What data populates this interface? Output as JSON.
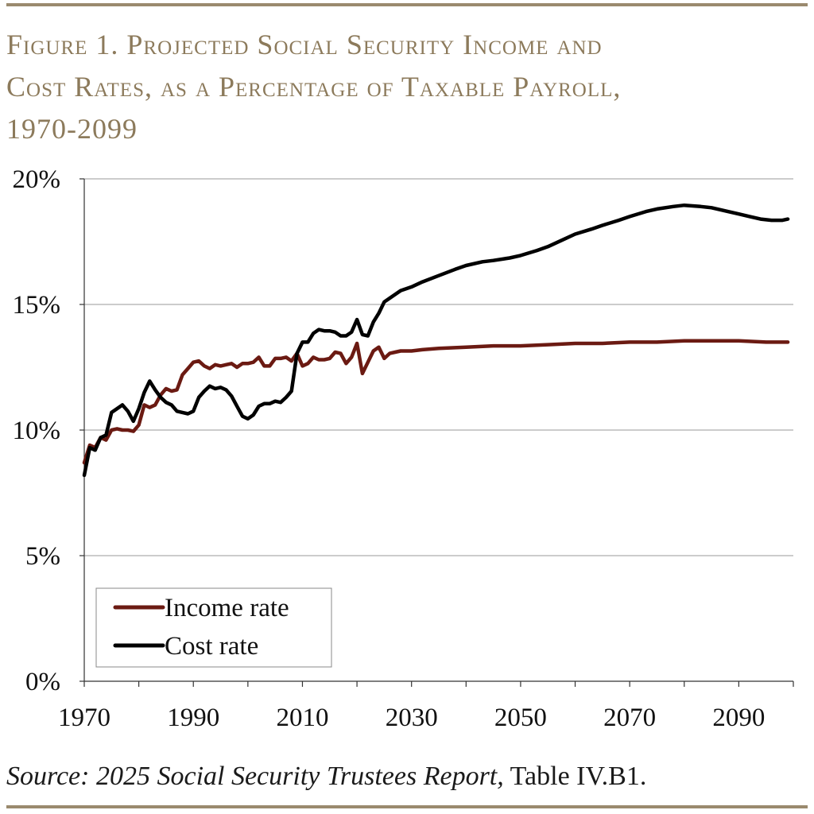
{
  "title_lines": [
    "Figure 1. Projected Social Security Income and",
    "Cost Rates, as a Percentage of Taxable Payroll,",
    "1970-2099"
  ],
  "source": {
    "italic": "Source: 2025 Social Security Trustees Report,",
    "plain": " Table IV.B1."
  },
  "colors": {
    "income": "#6b1a12",
    "cost": "#000000",
    "grid": "#9a9a9a",
    "axis": "#333333"
  },
  "chart_data": {
    "type": "line",
    "title": "Figure 1. Projected Social Security Income and Cost Rates, as a Percentage of Taxable Payroll, 1970-2099",
    "xlabel": "",
    "ylabel": "",
    "xlim": [
      1970,
      2100
    ],
    "ylim": [
      0,
      20
    ],
    "x_ticks": [
      1970,
      1990,
      2010,
      2030,
      2050,
      2070,
      2090
    ],
    "x_tick_labels": [
      "1970",
      "1990",
      "2010",
      "2030",
      "2050",
      "2070",
      "2090"
    ],
    "y_ticks": [
      0,
      5,
      10,
      15,
      20
    ],
    "y_tick_labels": [
      "0%",
      "5%",
      "10%",
      "15%",
      "20%"
    ],
    "grid": "horizontal",
    "legend_position": "bottom-left",
    "series": [
      {
        "name": "Income rate",
        "points": [
          [
            1970,
            8.7
          ],
          [
            1971,
            9.4
          ],
          [
            1972,
            9.3
          ],
          [
            1973,
            9.7
          ],
          [
            1974,
            9.6
          ],
          [
            1975,
            10.0
          ],
          [
            1976,
            10.05
          ],
          [
            1977,
            10.0
          ],
          [
            1978,
            10.0
          ],
          [
            1979,
            9.95
          ],
          [
            1980,
            10.2
          ],
          [
            1981,
            11.0
          ],
          [
            1982,
            10.9
          ],
          [
            1983,
            11.0
          ],
          [
            1984,
            11.4
          ],
          [
            1985,
            11.65
          ],
          [
            1986,
            11.55
          ],
          [
            1987,
            11.6
          ],
          [
            1988,
            12.2
          ],
          [
            1989,
            12.45
          ],
          [
            1990,
            12.7
          ],
          [
            1991,
            12.75
          ],
          [
            1992,
            12.55
          ],
          [
            1993,
            12.45
          ],
          [
            1994,
            12.6
          ],
          [
            1995,
            12.55
          ],
          [
            1996,
            12.6
          ],
          [
            1997,
            12.65
          ],
          [
            1998,
            12.5
          ],
          [
            1999,
            12.65
          ],
          [
            2000,
            12.65
          ],
          [
            2001,
            12.7
          ],
          [
            2002,
            12.9
          ],
          [
            2003,
            12.55
          ],
          [
            2004,
            12.55
          ],
          [
            2005,
            12.85
          ],
          [
            2006,
            12.85
          ],
          [
            2007,
            12.9
          ],
          [
            2008,
            12.75
          ],
          [
            2009,
            13.05
          ],
          [
            2010,
            12.55
          ],
          [
            2011,
            12.65
          ],
          [
            2012,
            12.9
          ],
          [
            2013,
            12.8
          ],
          [
            2014,
            12.8
          ],
          [
            2015,
            12.85
          ],
          [
            2016,
            13.1
          ],
          [
            2017,
            13.05
          ],
          [
            2018,
            12.65
          ],
          [
            2019,
            12.9
          ],
          [
            2020,
            13.45
          ],
          [
            2021,
            12.25
          ],
          [
            2022,
            12.7
          ],
          [
            2023,
            13.15
          ],
          [
            2024,
            13.3
          ],
          [
            2025,
            12.85
          ],
          [
            2026,
            13.05
          ],
          [
            2027,
            13.1
          ],
          [
            2028,
            13.15
          ],
          [
            2030,
            13.15
          ],
          [
            2032,
            13.2
          ],
          [
            2035,
            13.25
          ],
          [
            2040,
            13.3
          ],
          [
            2045,
            13.35
          ],
          [
            2050,
            13.35
          ],
          [
            2055,
            13.4
          ],
          [
            2060,
            13.45
          ],
          [
            2065,
            13.45
          ],
          [
            2070,
            13.5
          ],
          [
            2075,
            13.5
          ],
          [
            2080,
            13.55
          ],
          [
            2085,
            13.55
          ],
          [
            2090,
            13.55
          ],
          [
            2095,
            13.5
          ],
          [
            2099,
            13.5
          ]
        ]
      },
      {
        "name": "Cost rate",
        "points": [
          [
            1970,
            8.2
          ],
          [
            1971,
            9.3
          ],
          [
            1972,
            9.2
          ],
          [
            1973,
            9.7
          ],
          [
            1974,
            9.8
          ],
          [
            1975,
            10.7
          ],
          [
            1976,
            10.85
          ],
          [
            1977,
            11.0
          ],
          [
            1978,
            10.75
          ],
          [
            1979,
            10.35
          ],
          [
            1980,
            10.85
          ],
          [
            1981,
            11.5
          ],
          [
            1982,
            11.95
          ],
          [
            1983,
            11.6
          ],
          [
            1984,
            11.3
          ],
          [
            1985,
            11.1
          ],
          [
            1986,
            11.0
          ],
          [
            1987,
            10.75
          ],
          [
            1988,
            10.7
          ],
          [
            1989,
            10.65
          ],
          [
            1990,
            10.75
          ],
          [
            1991,
            11.3
          ],
          [
            1992,
            11.55
          ],
          [
            1993,
            11.75
          ],
          [
            1994,
            11.65
          ],
          [
            1995,
            11.7
          ],
          [
            1996,
            11.6
          ],
          [
            1997,
            11.35
          ],
          [
            1998,
            10.95
          ],
          [
            1999,
            10.55
          ],
          [
            2000,
            10.45
          ],
          [
            2001,
            10.6
          ],
          [
            2002,
            10.95
          ],
          [
            2003,
            11.05
          ],
          [
            2004,
            11.05
          ],
          [
            2005,
            11.15
          ],
          [
            2006,
            11.1
          ],
          [
            2007,
            11.3
          ],
          [
            2008,
            11.55
          ],
          [
            2009,
            13.05
          ],
          [
            2010,
            13.5
          ],
          [
            2011,
            13.5
          ],
          [
            2012,
            13.85
          ],
          [
            2013,
            14.0
          ],
          [
            2014,
            13.95
          ],
          [
            2015,
            13.95
          ],
          [
            2016,
            13.9
          ],
          [
            2017,
            13.75
          ],
          [
            2018,
            13.75
          ],
          [
            2019,
            13.9
          ],
          [
            2020,
            14.4
          ],
          [
            2021,
            13.8
          ],
          [
            2022,
            13.75
          ],
          [
            2023,
            14.3
          ],
          [
            2024,
            14.65
          ],
          [
            2025,
            15.1
          ],
          [
            2026,
            15.25
          ],
          [
            2027,
            15.4
          ],
          [
            2028,
            15.55
          ],
          [
            2030,
            15.7
          ],
          [
            2032,
            15.9
          ],
          [
            2035,
            16.15
          ],
          [
            2038,
            16.4
          ],
          [
            2040,
            16.55
          ],
          [
            2043,
            16.7
          ],
          [
            2045,
            16.75
          ],
          [
            2048,
            16.85
          ],
          [
            2050,
            16.95
          ],
          [
            2053,
            17.15
          ],
          [
            2055,
            17.3
          ],
          [
            2058,
            17.6
          ],
          [
            2060,
            17.8
          ],
          [
            2063,
            18.0
          ],
          [
            2065,
            18.15
          ],
          [
            2068,
            18.35
          ],
          [
            2070,
            18.5
          ],
          [
            2073,
            18.7
          ],
          [
            2075,
            18.8
          ],
          [
            2078,
            18.9
          ],
          [
            2080,
            18.95
          ],
          [
            2083,
            18.9
          ],
          [
            2085,
            18.85
          ],
          [
            2088,
            18.7
          ],
          [
            2090,
            18.6
          ],
          [
            2092,
            18.5
          ],
          [
            2094,
            18.4
          ],
          [
            2096,
            18.35
          ],
          [
            2098,
            18.35
          ],
          [
            2099,
            18.4
          ]
        ]
      }
    ]
  }
}
